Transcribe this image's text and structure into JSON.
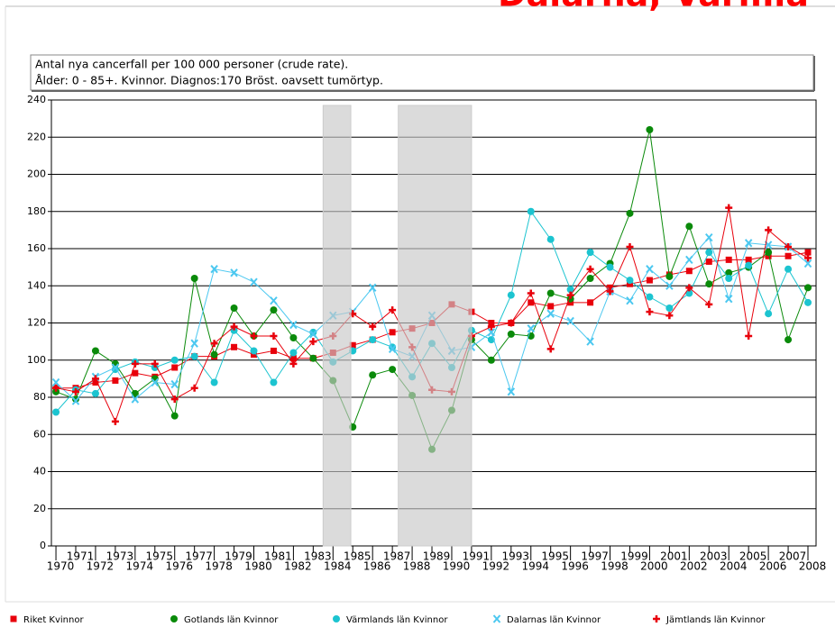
{
  "chart_data": {
    "type": "line",
    "title": "Dalarna, Värmla",
    "subtitle": [
      "Antal nya cancerfall per 100 000 personer (crude rate).",
      "Ålder: 0 - 85+. Kvinnor. Diagnos:170 Bröst. oavsett tumörtyp."
    ],
    "x": [
      1970,
      1971,
      1972,
      1973,
      1974,
      1975,
      1976,
      1977,
      1978,
      1979,
      1980,
      1981,
      1982,
      1983,
      1984,
      1985,
      1986,
      1987,
      1988,
      1989,
      1990,
      1991,
      1992,
      1993,
      1994,
      1995,
      1996,
      1997,
      1998,
      1999,
      2000,
      2001,
      2002,
      2003,
      2004,
      2005,
      2006,
      2007,
      2008
    ],
    "xlim": [
      1969.77,
      2008.41
    ],
    "xticks": [
      1970,
      1971,
      1972,
      1973,
      1974,
      1975,
      1976,
      1977,
      1978,
      1979,
      1980,
      1981,
      1982,
      1983,
      1984,
      1985,
      1986,
      1987,
      1988,
      1989,
      1990,
      1991,
      1992,
      1993,
      1994,
      1995,
      1996,
      1997,
      1998,
      1999,
      2000,
      2001,
      2002,
      2003,
      2004,
      2005,
      2006,
      2007,
      2008
    ],
    "ylim": [
      0,
      240
    ],
    "yticks": [
      0,
      20,
      40,
      60,
      80,
      100,
      120,
      140,
      160,
      180,
      200,
      220,
      240
    ],
    "grid": true,
    "legend": "bottom",
    "highlight_ranges": [
      [
        1983.5,
        1984.9
      ],
      [
        1987.3,
        1991.0
      ]
    ],
    "series": [
      {
        "name": "Riket Kvinnor",
        "color": "#e8000b",
        "marker": "square",
        "values": [
          85,
          85,
          88,
          89,
          93,
          91,
          96,
          102,
          102,
          107,
          103,
          105,
          101,
          101,
          104,
          108,
          111,
          115,
          117,
          120,
          130,
          126,
          120,
          120,
          131,
          129,
          131,
          131,
          139,
          141,
          143,
          146,
          148,
          153,
          154,
          154,
          156,
          156,
          158
        ]
      },
      {
        "name": "Gotlands län Kvinnor",
        "color": "#0a8a0a",
        "marker": "circle",
        "values": [
          83,
          79,
          105,
          98,
          82,
          90,
          70,
          144,
          103,
          128,
          113,
          127,
          112,
          101,
          89,
          64,
          92,
          95,
          81,
          52,
          73,
          111,
          100,
          114,
          113,
          136,
          133,
          144,
          152,
          179,
          224,
          145,
          172,
          141,
          147,
          150,
          158,
          111,
          139
        ]
      },
      {
        "name": "Värmlands län Kvinnor",
        "color": "#1cc4d0",
        "marker": "circle",
        "values": [
          72,
          84,
          82,
          95,
          99,
          96,
          100,
          102,
          88,
          116,
          105,
          88,
          104,
          115,
          99,
          105,
          111,
          107,
          91,
          109,
          96,
          116,
          111,
          135,
          180,
          165,
          138,
          158,
          150,
          143,
          134,
          128,
          136,
          158,
          144,
          151,
          125,
          149,
          131
        ]
      },
      {
        "name": "Dalarnas län Kvinnor",
        "color": "#4cc8f0",
        "marker": "x",
        "values": [
          88,
          78,
          91,
          96,
          79,
          88,
          87,
          109,
          149,
          147,
          142,
          132,
          119,
          114,
          124,
          126,
          139,
          106,
          102,
          124,
          105,
          107,
          115,
          83,
          117,
          125,
          121,
          110,
          137,
          132,
          149,
          140,
          154,
          166,
          133,
          163,
          162,
          161,
          152
        ]
      },
      {
        "name": "Jämtlands län Kvinnor",
        "color": "#e8000b",
        "marker": "plus",
        "values": [
          85,
          83,
          90,
          67,
          98,
          98,
          79,
          85,
          109,
          118,
          113,
          113,
          98,
          110,
          113,
          125,
          118,
          127,
          107,
          84,
          83,
          113,
          118,
          120,
          136,
          106,
          135,
          149,
          137,
          161,
          126,
          124,
          139,
          130,
          182,
          113,
          170,
          161,
          155
        ]
      }
    ]
  }
}
